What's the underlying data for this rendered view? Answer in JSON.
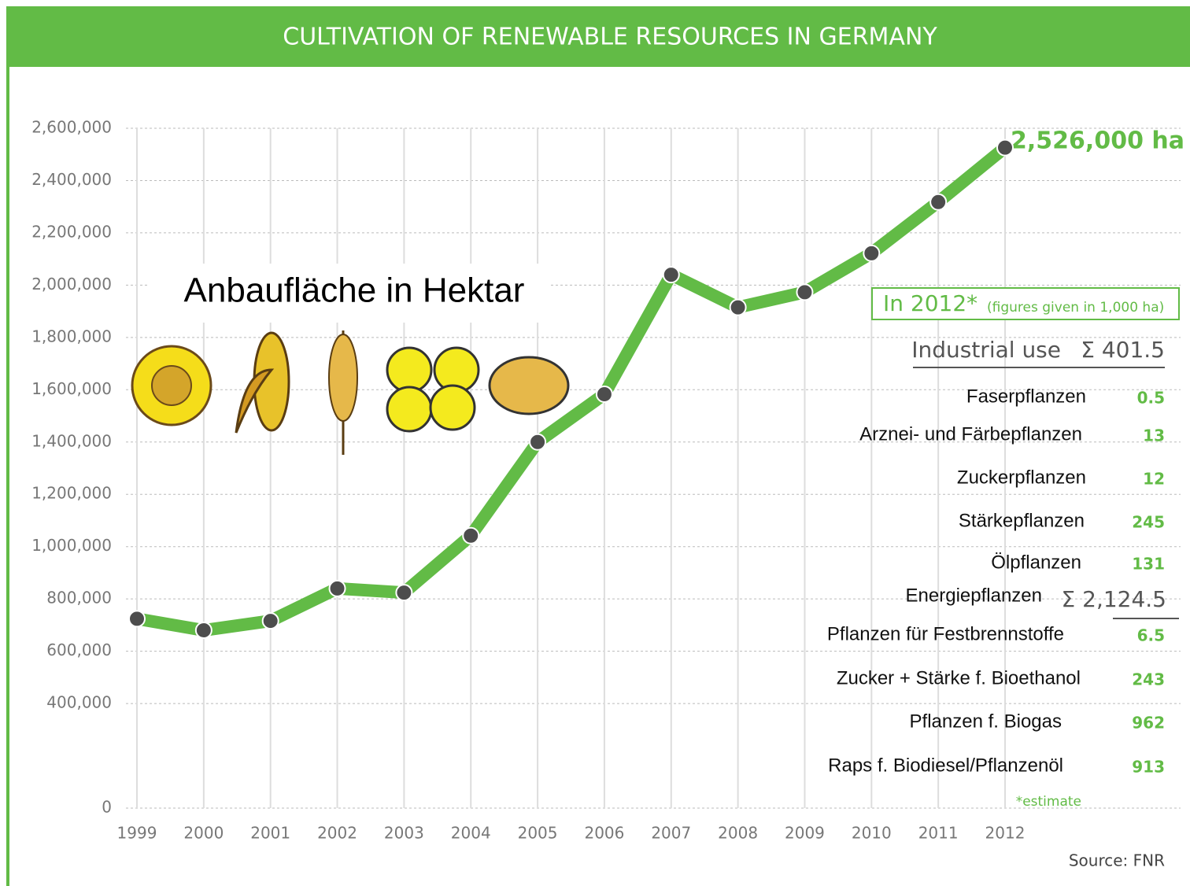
{
  "chart_data": {
    "type": "line",
    "title": "CULTIVATION OF RENEWABLE RESOURCES IN GERMANY",
    "subtitle": "Anbaufläche in Hektar",
    "categories": [
      "1999",
      "2000",
      "2001",
      "2002",
      "2003",
      "2004",
      "2005",
      "2006",
      "2007",
      "2008",
      "2009",
      "2010",
      "2011",
      "2012"
    ],
    "series": [
      {
        "color": "#62bb46",
        "values": [
          724000,
          680000,
          716000,
          840000,
          824000,
          1042000,
          1400000,
          1583000,
          2040000,
          1915000,
          1973000,
          2122000,
          2318000,
          2526000
        ]
      }
    ],
    "ylim": [
      0,
      2600000
    ],
    "yticks": [
      0,
      {
        "value": 400000,
        "label": "400,000"
      },
      {
        "value": 600000,
        "label": "600,000"
      },
      {
        "value": 800000,
        "label": "800,000"
      },
      {
        "value": 1000000,
        "label": "1,000,000"
      },
      {
        "value": 1200000,
        "label": "1,200,000"
      },
      {
        "value": 1400000,
        "label": "1,400,000"
      },
      {
        "value": 1600000,
        "label": "1,600,000"
      },
      {
        "value": 1800000,
        "label": "1,800,000"
      },
      {
        "value": 2000000,
        "label": "2,000,000"
      },
      {
        "value": 2200000,
        "label": "2,200,000"
      },
      {
        "value": 2400000,
        "label": "2,400,000"
      },
      {
        "value": 2600000,
        "label": "2,600,000"
      }
    ],
    "grid": true,
    "end_label": "2,526,000 ha",
    "box_title": "In 2012*",
    "box_note": "(figures given in 1,000 ha)",
    "industrial": {
      "label": "Industrial use",
      "sum": "Σ 401.5",
      "rows": [
        [
          "Faserpflanzen",
          0.5
        ],
        [
          "Arznei- und Färbepflanzen",
          13
        ],
        [
          "Zuckerpflanzen",
          12
        ],
        [
          "Stärkepflanzen",
          245
        ],
        [
          "Ölpflanzen",
          131
        ]
      ]
    },
    "energy": {
      "label": "Energiepflanzen",
      "sum": "Σ 2,124.5",
      "rows": [
        [
          "Pflanzen für Festbrennstoffe",
          6.5
        ],
        [
          "Zucker + Stärke f. Bioethanol",
          243
        ],
        [
          "Pflanzen f. Biogas",
          962
        ],
        [
          "Raps f. Biodiesel/Pflanzenöl",
          913
        ]
      ]
    },
    "footnote": "*estimate",
    "source": "Source:  FNR"
  }
}
